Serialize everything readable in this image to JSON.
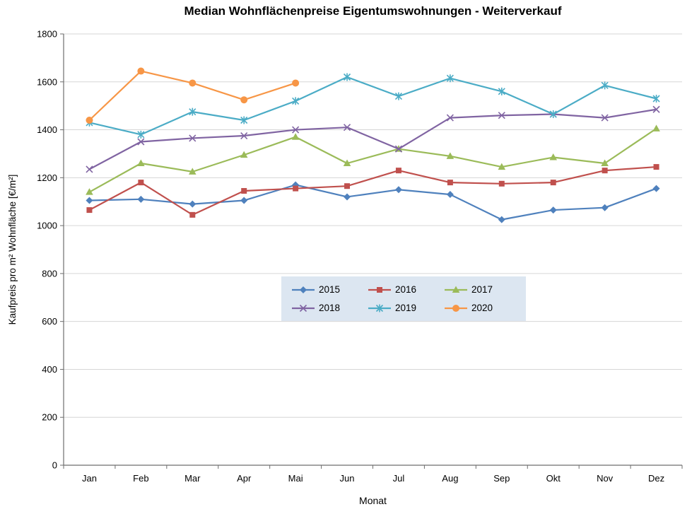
{
  "chart_data": {
    "type": "line",
    "title": "Median Wohnflächenpreise Eigentumswohnungen - Weiterverkauf",
    "xlabel": "Monat",
    "ylabel": "Kaufpreis pro m² Wohnfläche [€/m²]",
    "ylim": [
      0,
      1800
    ],
    "ytick_step": 200,
    "grid": true,
    "legend_position": "center",
    "legend_bg": "#DCE6F1",
    "axis_color": "#6E6E6E",
    "grid_color": "#D6D6D6",
    "categories": [
      "Jan",
      "Feb",
      "Mar",
      "Apr",
      "Mai",
      "Jun",
      "Jul",
      "Aug",
      "Sep",
      "Okt",
      "Nov",
      "Dez"
    ],
    "series": [
      {
        "name": "2015",
        "color": "#4F81BD",
        "marker": "diamond",
        "values": [
          1105,
          1110,
          1090,
          1105,
          1170,
          1120,
          1150,
          1130,
          1025,
          1065,
          1075,
          1155
        ]
      },
      {
        "name": "2016",
        "color": "#C0504D",
        "marker": "square",
        "values": [
          1065,
          1180,
          1045,
          1145,
          1155,
          1165,
          1230,
          1180,
          1175,
          1180,
          1230,
          1245
        ]
      },
      {
        "name": "2017",
        "color": "#9BBB59",
        "marker": "triangle",
        "values": [
          1140,
          1260,
          1225,
          1295,
          1370,
          1260,
          1320,
          1290,
          1245,
          1285,
          1260,
          1405
        ]
      },
      {
        "name": "2018",
        "color": "#8064A2",
        "marker": "x",
        "values": [
          1235,
          1350,
          1365,
          1375,
          1400,
          1410,
          1320,
          1450,
          1460,
          1465,
          1450,
          1485
        ]
      },
      {
        "name": "2019",
        "color": "#4BACC6",
        "marker": "star",
        "values": [
          1430,
          1380,
          1475,
          1440,
          1520,
          1620,
          1540,
          1615,
          1560,
          1465,
          1585,
          1530
        ]
      },
      {
        "name": "2020",
        "color": "#F79646",
        "marker": "circle",
        "values": [
          1440,
          1645,
          1595,
          1525,
          1595
        ]
      }
    ]
  }
}
